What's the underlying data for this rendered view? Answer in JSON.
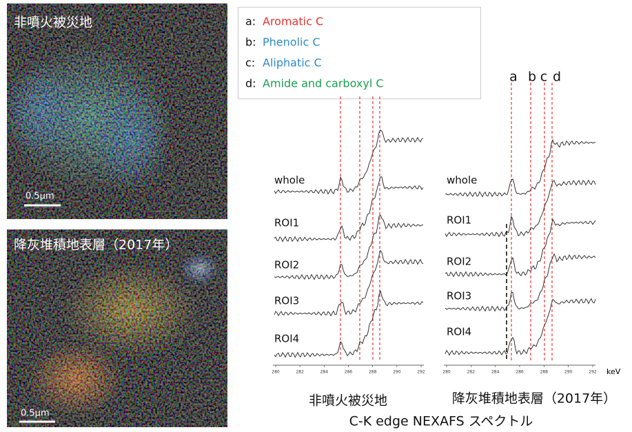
{
  "images": [
    {
      "label": "非噴火被災地",
      "scale": "0.5μm"
    },
    {
      "label": "降灰堆積地表層（2017年）",
      "scale": "0.5μm"
    }
  ],
  "legend": [
    {
      "key": "a:",
      "text": "Aromatic C"
    },
    {
      "key": "b:",
      "text": "Phenolic C"
    },
    {
      "key": "c:",
      "text": "Aliphatic C"
    },
    {
      "key": "d:",
      "text": "Amide and carboxyl C"
    }
  ],
  "spectra": [
    {
      "title": "非噴火被災地",
      "rows": [
        "whole",
        "ROI1",
        "ROI2",
        "ROI3",
        "ROI4"
      ],
      "axis_ticks": [
        "280",
        "282",
        "284",
        "286",
        "288",
        "290",
        "292"
      ]
    },
    {
      "title": "降灰堆積地表層（2017年）",
      "rows": [
        "whole",
        "ROI1",
        "ROI2",
        "ROI3",
        "ROI4"
      ],
      "axis_ticks": [
        "280",
        "282",
        "284",
        "286",
        "288",
        "290",
        "292"
      ],
      "peak_labels": [
        "a",
        "b",
        "c",
        "d"
      ],
      "unit": "keV"
    }
  ],
  "caption": "C-K edge NEXAFS スペクトル"
}
